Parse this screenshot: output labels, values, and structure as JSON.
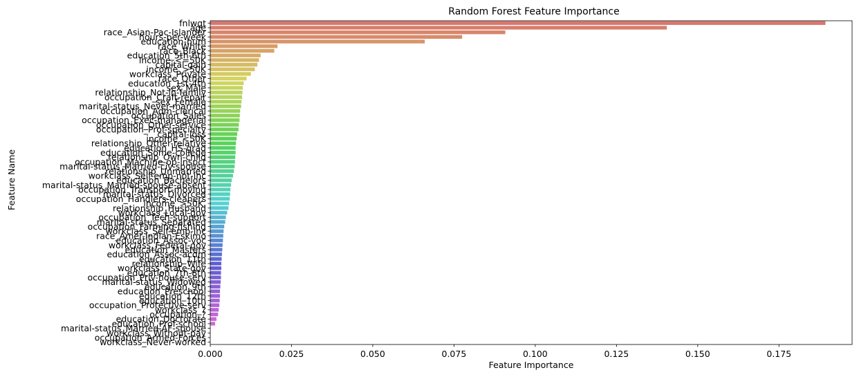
{
  "chart_data": {
    "type": "bar",
    "orientation": "horizontal",
    "title": "Random Forest Feature Importance",
    "xlabel": "Feature Importance",
    "ylabel": "Feature Name",
    "xlim": [
      0,
      0.1975
    ],
    "xticks": [
      0.0,
      0.025,
      0.05,
      0.075,
      0.1,
      0.125,
      0.15,
      0.175
    ],
    "xtick_labels": [
      "0.000",
      "0.025",
      "0.050",
      "0.075",
      "0.100",
      "0.125",
      "0.150",
      "0.175"
    ],
    "grid": false,
    "legend": "none",
    "categories": [
      "fnlwgt",
      "age",
      "race_Asian-Pac-Islander",
      "hours-per-week",
      "education-num",
      "race_White",
      "race_Black",
      "education_5th-6th",
      "income_<=50K",
      "capital-gain",
      "income_>50K",
      "workclass_Private",
      "race_Other",
      "education_1st-4th",
      "sex_Male",
      "relationship_Not-in-family",
      "occupation_Craft-repair",
      "sex_Female",
      "marital-status_Never-married",
      "occupation_Adm-clerical",
      "occupation_Sales",
      "occupation_Exec-managerial",
      "occupation_Other-service",
      "occupation_Prof-specialty",
      "capital-loss",
      "income_<50K",
      "relationship_Other-relative",
      "education_HS-grad",
      "education_Some-college",
      "relationship_Own-child",
      "occupation_Machine-op-inspct",
      "marital-status_Married-civ-spouse",
      "relationship_Unmarried",
      "workclass_Self-emp-not-inc",
      "education_Bachelors",
      "marital-status_Married-spouse-absent",
      "occupation_Transport-moving",
      "marital-status_Divorced",
      "occupation_Handlers-cleaners",
      "income_>50K.",
      "relationship_Husband",
      "workclass_Local-gov",
      "occupation_Tech-support",
      "marital-status_Separated",
      "occupation_Farming-fishing",
      "workclass_Self-emp-inc",
      "race_Amer-Indian-Eskimo",
      "education_Assoc-voc",
      "workclass_Federal-gov",
      "education_Masters",
      "education_Assoc-acdm",
      "education_11th",
      "relationship_Wife",
      "workclass_State-gov",
      "education_7th-8th",
      "occupation_Priv-house-serv",
      "marital-status_Widowed",
      "education_9th",
      "education_Preschool",
      "education_12th",
      "education_10th",
      "occupation_Protective-serv",
      "workclass_?",
      "occupation_?",
      "education_Doctorate",
      "education_Prof-school",
      "marital-status_Married-AF-spouse",
      "workclass_Without-pay",
      "occupation_Armed-Forces",
      "workclass_Never-worked"
    ],
    "values": [
      0.1893,
      0.1405,
      0.0908,
      0.0775,
      0.066,
      0.0207,
      0.0197,
      0.0155,
      0.015,
      0.0145,
      0.0137,
      0.0125,
      0.0112,
      0.0103,
      0.01,
      0.0099,
      0.0098,
      0.0096,
      0.0095,
      0.0092,
      0.0091,
      0.009,
      0.0088,
      0.0087,
      0.0083,
      0.0081,
      0.0079,
      0.0078,
      0.0078,
      0.0077,
      0.0076,
      0.0075,
      0.0073,
      0.007,
      0.0066,
      0.0064,
      0.0062,
      0.0061,
      0.006,
      0.0058,
      0.0056,
      0.0052,
      0.0048,
      0.0046,
      0.0043,
      0.0041,
      0.004,
      0.0039,
      0.0038,
      0.0037,
      0.0036,
      0.0035,
      0.0034,
      0.0034,
      0.0033,
      0.0033,
      0.0032,
      0.0031,
      0.003,
      0.003,
      0.0029,
      0.0028,
      0.0026,
      0.0024,
      0.0019,
      0.0015,
      0.0001,
      0.0001,
      0.0,
      0.0
    ],
    "palette": "husl-gradient"
  }
}
